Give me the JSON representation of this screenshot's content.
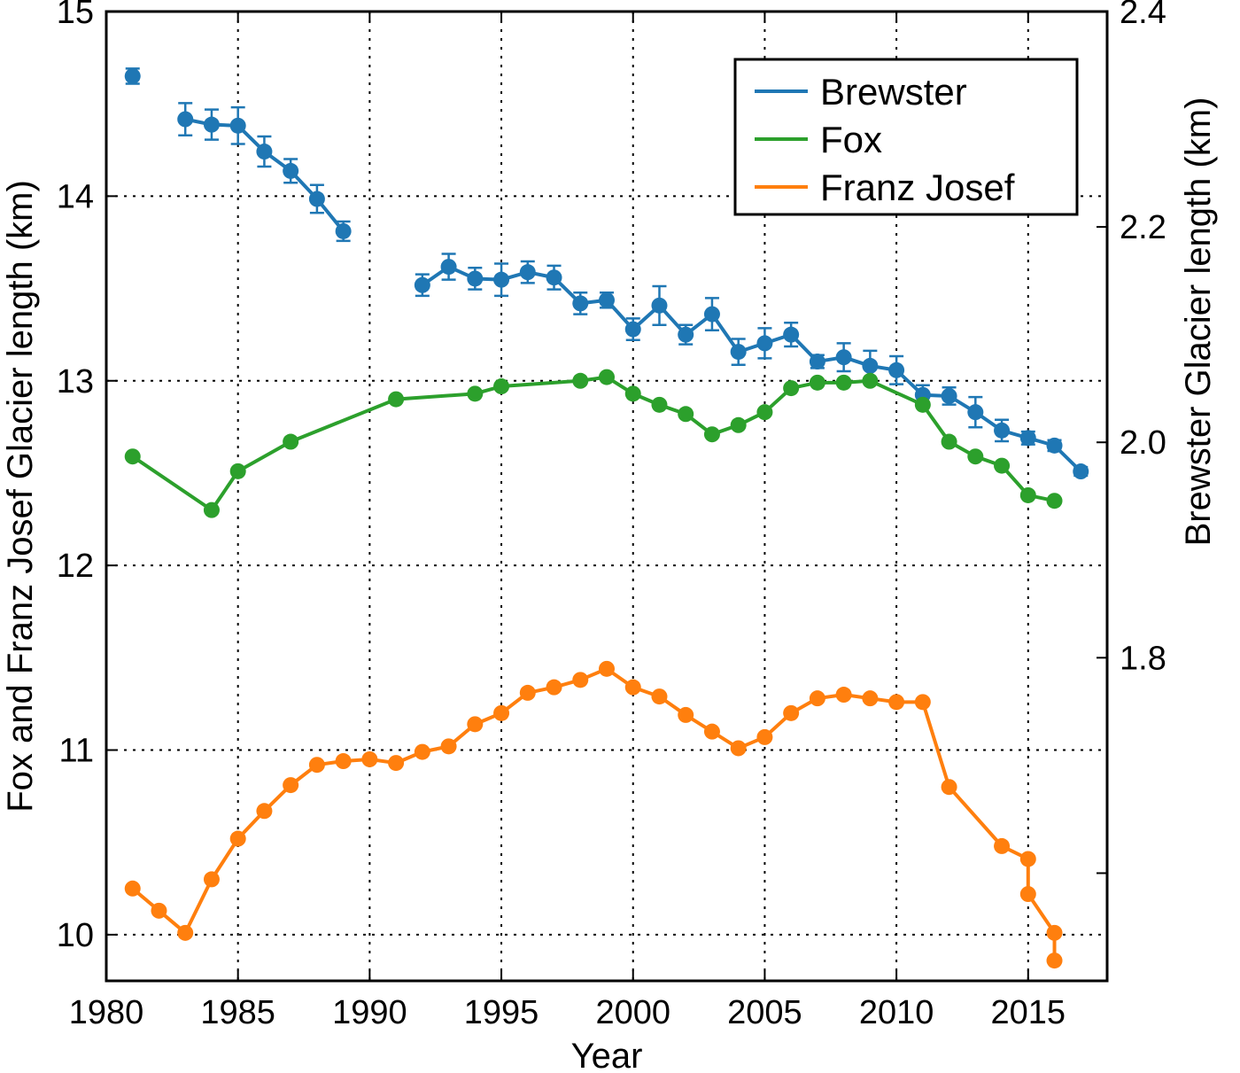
{
  "chart_data": {
    "type": "line",
    "xlabel": "Year",
    "ylabel_left": "Fox and Franz Josef Glacier length (km)",
    "ylabel_right": "Brewster Glacier length (km)",
    "xlim": [
      1980,
      2018
    ],
    "ylim_left": [
      9.75,
      15.0
    ],
    "ylim_right": [
      1.5,
      2.4
    ],
    "x_ticks": [
      1980,
      1985,
      1990,
      1995,
      2000,
      2005,
      2010,
      2015
    ],
    "x_tick_labels": [
      "1980",
      "1985",
      "1990",
      "1995",
      "2000",
      "2005",
      "2010",
      "2015"
    ],
    "y_left_ticks": [
      10,
      11,
      12,
      13,
      14,
      15
    ],
    "y_left_tick_labels": [
      "10",
      "11",
      "12",
      "13",
      "14",
      "15"
    ],
    "y_right_ticks": [
      1.8,
      2.0,
      2.2,
      2.4
    ],
    "y_right_tick_labels": [
      "1.8",
      "2.0",
      "2.2",
      "2.4"
    ],
    "y_right_minor_ticks": [
      1.6
    ],
    "grid": true,
    "legend_position": "top-right",
    "series": [
      {
        "name": "Brewster",
        "color": "#1f77b4",
        "axis": "right",
        "error_bars": true,
        "segments": [
          {
            "x": [
              1981
            ],
            "y": [
              2.34
            ],
            "err": [
              0.007
            ]
          },
          {
            "x": [
              1983,
              1984,
              1985,
              1986,
              1987,
              1988,
              1989
            ],
            "y": [
              2.3,
              2.295,
              2.294,
              2.27,
              2.252,
              2.226,
              2.196
            ],
            "err": [
              0.015,
              0.014,
              0.017,
              0.014,
              0.011,
              0.013,
              0.009
            ]
          },
          {
            "x": [
              1992,
              1993,
              1994,
              1995,
              1996,
              1997,
              1998,
              1999,
              2000,
              2001,
              2002,
              2003,
              2004,
              2005,
              2006,
              2007,
              2008,
              2009,
              2010,
              2011,
              2012,
              2013,
              2014,
              2015,
              2016,
              2017
            ],
            "y": [
              2.146,
              2.163,
              2.152,
              2.151,
              2.158,
              2.153,
              2.129,
              2.132,
              2.105,
              2.127,
              2.1,
              2.119,
              2.084,
              2.092,
              2.1,
              2.075,
              2.079,
              2.071,
              2.067,
              2.044,
              2.043,
              2.028,
              2.011,
              2.004,
              1.997,
              1.973
            ],
            "err": [
              0.01,
              0.012,
              0.01,
              0.015,
              0.01,
              0.011,
              0.01,
              0.007,
              0.01,
              0.018,
              0.009,
              0.015,
              0.012,
              0.014,
              0.011,
              0.006,
              0.013,
              0.014,
              0.013,
              0.009,
              0.008,
              0.014,
              0.01,
              0.006,
              0.005,
              0.004
            ]
          }
        ]
      },
      {
        "name": "Fox",
        "color": "#2ca02c",
        "axis": "left",
        "segments": [
          {
            "x": [
              1981,
              1984,
              1985,
              1987,
              1991,
              1994,
              1995,
              1998,
              1999,
              2000,
              2001,
              2002,
              2003,
              2004,
              2005,
              2006,
              2007,
              2008,
              2009,
              2011,
              2012,
              2013,
              2014,
              2015,
              2016
            ],
            "y": [
              12.59,
              12.3,
              12.51,
              12.67,
              12.9,
              12.93,
              12.97,
              13.0,
              13.02,
              12.93,
              12.87,
              12.82,
              12.71,
              12.76,
              12.83,
              12.96,
              12.99,
              12.99,
              13.0,
              12.87,
              12.67,
              12.59,
              12.54,
              12.38,
              12.35
            ]
          }
        ]
      },
      {
        "name": "Franz Josef",
        "color": "#ff7f0e",
        "axis": "left",
        "segments": [
          {
            "x": [
              1981,
              1982,
              1983,
              1984,
              1985,
              1986,
              1987,
              1988,
              1989,
              1990,
              1991,
              1992,
              1993,
              1994,
              1995,
              1996,
              1997,
              1998,
              1999,
              2000,
              2001,
              2002,
              2003,
              2004,
              2005,
              2006,
              2007,
              2008,
              2009,
              2010,
              2011,
              2012,
              2014,
              2015,
              2015,
              2016,
              2016
            ],
            "y": [
              10.25,
              10.13,
              10.01,
              10.3,
              10.52,
              10.67,
              10.81,
              10.92,
              10.94,
              10.95,
              10.93,
              10.99,
              11.02,
              11.14,
              11.2,
              11.31,
              11.34,
              11.38,
              11.44,
              11.34,
              11.29,
              11.19,
              11.1,
              11.01,
              11.07,
              11.2,
              11.28,
              11.3,
              11.28,
              11.26,
              11.26,
              10.8,
              10.48,
              10.41,
              10.22,
              10.01,
              9.86
            ]
          }
        ]
      }
    ]
  }
}
